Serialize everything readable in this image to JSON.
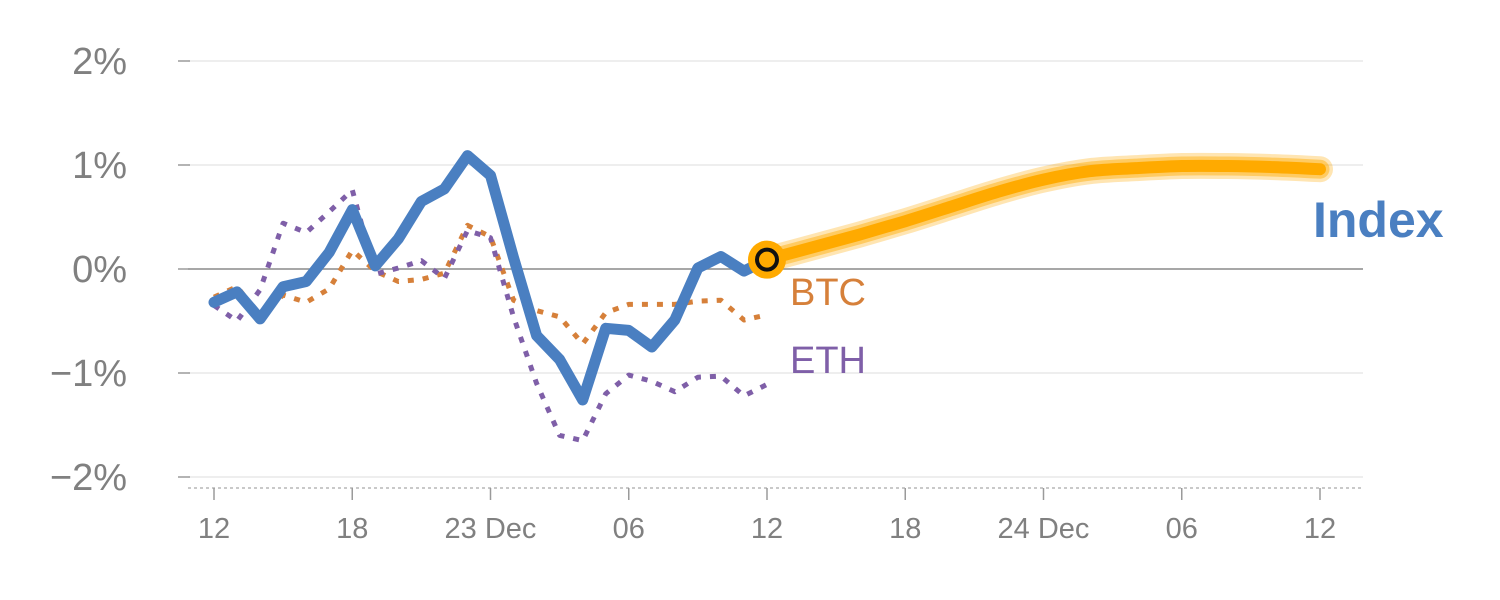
{
  "chart_data": {
    "type": "line",
    "y_axis": {
      "ticks": [
        2,
        1,
        0,
        -1,
        -2
      ],
      "tick_labels": [
        "2%",
        "1%",
        "0%",
        "−1%",
        "−2%"
      ],
      "ylim": [
        -2.1,
        2.1
      ],
      "grid": true
    },
    "x_axis": {
      "ticks": [
        0,
        6,
        12,
        18,
        24,
        30,
        36,
        42,
        48
      ],
      "tick_labels": [
        "12",
        "18",
        "23 Dec",
        "06",
        "12",
        "18",
        "24 Dec",
        "06",
        "12"
      ],
      "xlim": [
        -1,
        49
      ]
    },
    "series": [
      {
        "name": "Index",
        "color": "#4a7fc1",
        "style": "solid",
        "x": [
          0,
          1,
          2,
          3,
          4,
          5,
          6,
          7,
          8,
          9,
          10,
          11,
          12,
          13,
          14,
          15,
          16,
          17,
          18,
          19,
          20,
          21,
          22,
          23,
          24
        ],
        "y": [
          -0.32,
          -0.22,
          -0.48,
          -0.17,
          -0.12,
          0.16,
          0.57,
          0.03,
          0.29,
          0.65,
          0.77,
          1.09,
          0.9,
          0.11,
          -0.64,
          -0.87,
          -1.26,
          -0.57,
          -0.59,
          -0.75,
          -0.49,
          0.01,
          0.12,
          -0.02,
          0.09
        ]
      },
      {
        "name": "BTC",
        "color": "#d6803a",
        "style": "dotted",
        "x": [
          0,
          1,
          2,
          3,
          4,
          5,
          6,
          7,
          8,
          9,
          10,
          11,
          12,
          13,
          14,
          15,
          16,
          17,
          18,
          19,
          20,
          21,
          22,
          23,
          24
        ],
        "y": [
          -0.27,
          -0.17,
          -0.45,
          -0.25,
          -0.32,
          -0.19,
          0.18,
          -0.02,
          -0.12,
          -0.1,
          -0.04,
          0.42,
          0.31,
          -0.3,
          -0.4,
          -0.46,
          -0.72,
          -0.42,
          -0.34,
          -0.34,
          -0.34,
          -0.31,
          -0.3,
          -0.49,
          -0.44
        ]
      },
      {
        "name": "ETH",
        "color": "#7f5fa8",
        "style": "dotted",
        "x": [
          0,
          1,
          2,
          3,
          4,
          5,
          6,
          7,
          8,
          9,
          10,
          11,
          12,
          13,
          14,
          15,
          16,
          17,
          18,
          19,
          20,
          21,
          22,
          23,
          24
        ],
        "y": [
          -0.35,
          -0.5,
          -0.2,
          0.44,
          0.35,
          0.55,
          0.76,
          -0.05,
          0.01,
          0.08,
          -0.09,
          0.37,
          0.3,
          -0.46,
          -1.1,
          -1.6,
          -1.65,
          -1.2,
          -1.02,
          -1.08,
          -1.18,
          -1.04,
          -1.03,
          -1.22,
          -1.11
        ]
      }
    ],
    "forecast": {
      "color": "#ffaa00",
      "x": [
        24,
        26,
        28,
        30,
        32,
        34,
        36,
        38,
        40,
        42,
        44,
        46,
        48
      ],
      "y": [
        0.09,
        0.21,
        0.33,
        0.46,
        0.6,
        0.74,
        0.86,
        0.94,
        0.97,
        0.99,
        0.99,
        0.98,
        0.96
      ]
    },
    "marker": {
      "x": 24,
      "y": 0.09
    },
    "labels": {
      "btc": "BTC",
      "eth": "ETH",
      "index": "Index"
    }
  }
}
